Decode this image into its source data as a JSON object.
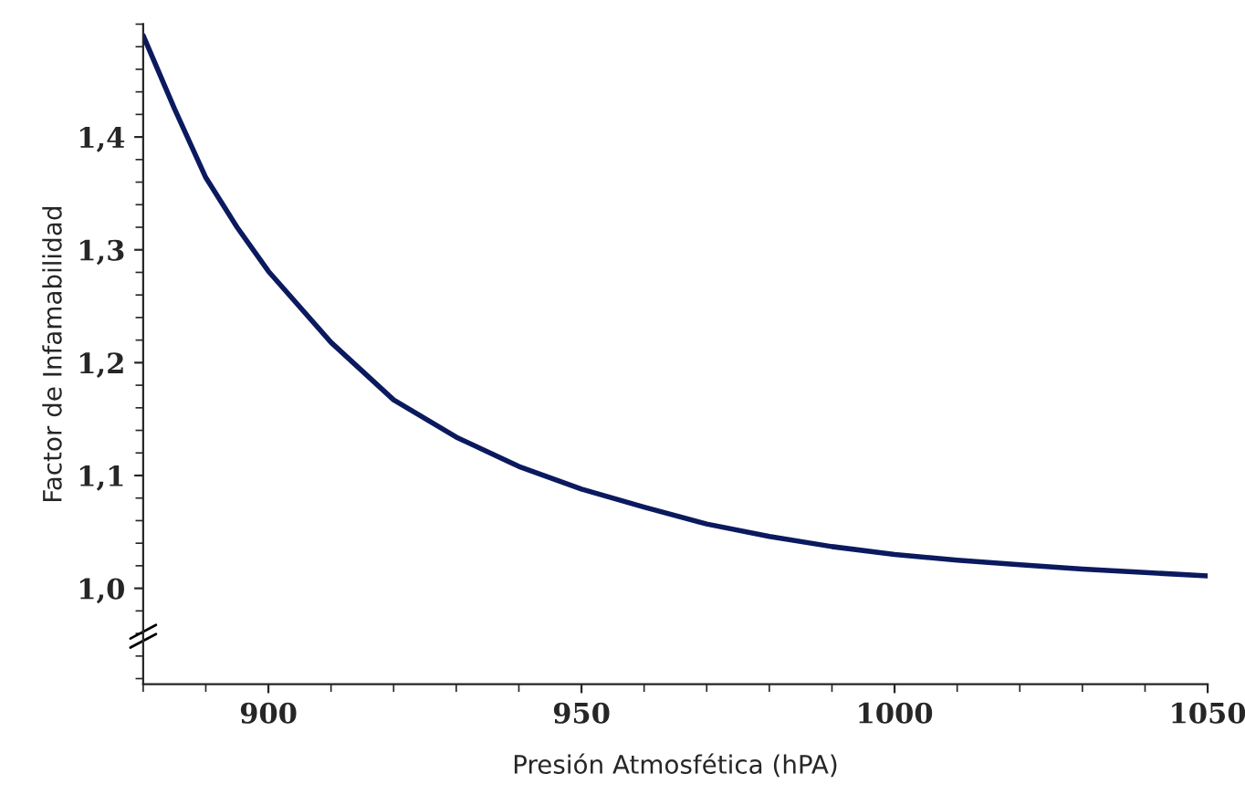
{
  "chart_data": {
    "type": "line",
    "xlabel": "Presión Atmosfética (hPA)",
    "ylabel": "Factor de Infamabilidad",
    "x": [
      880,
      885,
      890,
      895,
      900,
      910,
      920,
      930,
      940,
      950,
      960,
      970,
      980,
      990,
      1000,
      1010,
      1020,
      1030,
      1040,
      1050
    ],
    "series": [
      {
        "color": "#0b1a5e",
        "values": [
          1.49,
          1.425,
          1.364,
          1.32,
          1.281,
          1.218,
          1.167,
          1.134,
          1.108,
          1.088,
          1.072,
          1.057,
          1.046,
          1.037,
          1.03,
          1.025,
          1.021,
          1.017,
          1.014,
          1.011
        ]
      }
    ],
    "xlim": [
      880,
      1050
    ],
    "ylim": [
      0.915,
      1.5
    ],
    "xticks": [
      900,
      950,
      1000,
      1050
    ],
    "yticks": [
      {
        "value": 1.0,
        "label": "1,0"
      },
      {
        "value": 1.1,
        "label": "1,1"
      },
      {
        "value": 1.2,
        "label": "1,2"
      },
      {
        "value": 1.3,
        "label": "1,3"
      },
      {
        "value": 1.4,
        "label": "1,4"
      }
    ],
    "grid": false,
    "legend": false,
    "marker": "none",
    "line_style": "solid"
  }
}
